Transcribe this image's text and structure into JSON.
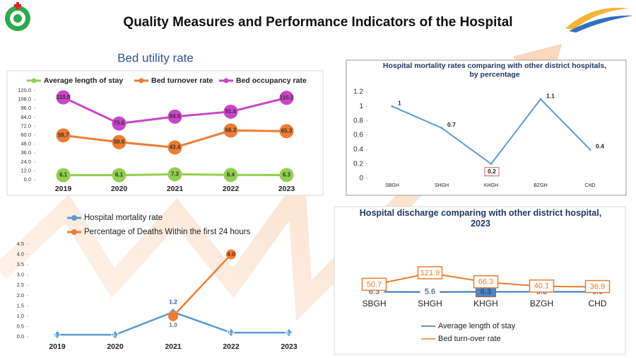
{
  "title": "Quality Measures and Performance Indicators of the Hospital",
  "chart_data": [
    {
      "type": "line",
      "title": "Bed utility rate",
      "categories": [
        "2019",
        "2020",
        "2021",
        "2022",
        "2023"
      ],
      "series": [
        {
          "name": "Average length of stay",
          "color": "#92d050",
          "values": [
            6.1,
            6.1,
            7.3,
            6.4,
            6.3
          ]
        },
        {
          "name": "Bed turnover rate",
          "color": "#ed7d31",
          "values": [
            59.7,
            50.6,
            43.4,
            66.3,
            65.3
          ]
        },
        {
          "name": "Bed occupancy rate",
          "color": "#cc44cc",
          "values": [
            110.8,
            75.6,
            84.9,
            91.6,
            110.2
          ]
        }
      ],
      "ylim": [
        0,
        120
      ],
      "yticks": [
        {
          "value": 0,
          "label": "0.0"
        },
        {
          "value": 12,
          "label": "12.0"
        },
        {
          "value": 24,
          "label": "24.0"
        },
        {
          "value": 36,
          "label": "36.0"
        },
        {
          "value": 48,
          "label": "48.0"
        },
        {
          "value": 60,
          "label": "60.0"
        },
        {
          "value": 72,
          "label": "72.0"
        },
        {
          "value": 84,
          "label": "84.0"
        },
        {
          "value": 96,
          "label": "96.0"
        },
        {
          "value": 108,
          "label": "108.0"
        },
        {
          "value": 120,
          "label": "120.0"
        }
      ],
      "legend": "top"
    },
    {
      "type": "line",
      "title": "Hospital mortality rates comparing with other district hospitals, by percentage",
      "categories": [
        "SBGH",
        "SHGH",
        "KHGH",
        "BZGH",
        "CHD"
      ],
      "series": [
        {
          "color": "#5b9bd5",
          "values": [
            1,
            0.7,
            0.2,
            1.1,
            0.4
          ]
        }
      ],
      "ylim": [
        0,
        1.2
      ],
      "yticks": [
        0,
        0.2,
        0.4,
        0.6,
        0.8,
        1,
        1.2
      ]
    },
    {
      "type": "line",
      "categories": [
        "2019",
        "2020",
        "2021",
        "2022",
        "2023"
      ],
      "series": [
        {
          "name": "Hospital mortality rate",
          "color": "#5b9bd5",
          "values": [
            0.1,
            0.1,
            1.2,
            0.2,
            0.2
          ]
        },
        {
          "name": "Percentage of Deaths Within the first 24 hours",
          "color": "#ed7d31",
          "values": [
            null,
            null,
            1.0,
            4.0,
            null
          ],
          "value_labels": [
            null,
            null,
            "1.0",
            "4.0",
            null
          ]
        }
      ],
      "ylim": [
        0,
        4.5
      ],
      "yticks": [
        {
          "value": 0,
          "label": "0.0"
        },
        0.5,
        {
          "value": 1,
          "label": "1.0"
        },
        1.5,
        {
          "value": 2,
          "label": "2.0"
        },
        2.5,
        {
          "value": 3,
          "label": "3.0"
        },
        3.5,
        {
          "value": 4,
          "label": "4.0"
        },
        4.5
      ],
      "legend": "top left"
    },
    {
      "type": "line",
      "title": "Hospital discharge comparing with other district hospital, 2023",
      "categories": [
        "SBGH",
        "SHGH",
        "KHGH",
        "BZGH",
        "CHD"
      ],
      "series": [
        {
          "name": "Average length of stay",
          "color": "#2e75b6",
          "values": [
            6.3,
            5.6,
            6.3,
            6.3,
            6.6
          ]
        },
        {
          "name": "Bed turn-over rate",
          "color": "#ed7d31",
          "values": [
            50.7,
            121.9,
            66.3,
            40.1,
            36.9
          ]
        }
      ],
      "legend": "bottom"
    }
  ]
}
